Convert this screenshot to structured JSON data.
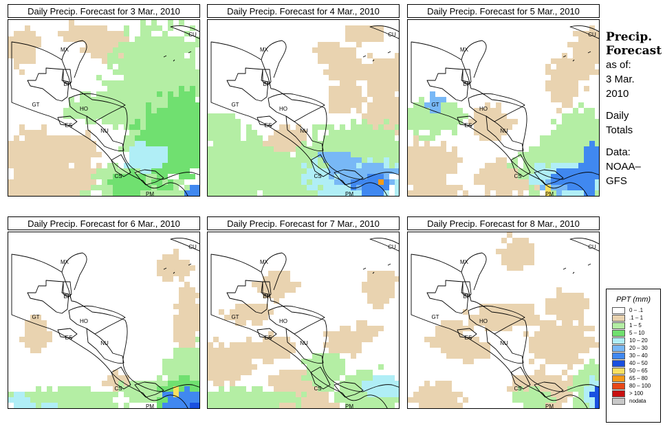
{
  "panels": [
    {
      "title": "Daily Precip. Forecast for  3 Mar., 2010",
      "scenario": "p1"
    },
    {
      "title": "Daily Precip. Forecast for  4 Mar., 2010",
      "scenario": "p2"
    },
    {
      "title": "Daily Precip. Forecast for  5 Mar., 2010",
      "scenario": "p3"
    },
    {
      "title": "Daily Precip. Forecast for  6 Mar., 2010",
      "scenario": "p4"
    },
    {
      "title": "Daily Precip. Forecast for  7 Mar., 2010",
      "scenario": "p5"
    },
    {
      "title": "Daily Precip. Forecast for  8 Mar., 2010",
      "scenario": "p6"
    }
  ],
  "country_labels": [
    "MX",
    "BH",
    "GT",
    "HO",
    "ES",
    "NU",
    "CS",
    "PM",
    "CU"
  ],
  "sidebar": {
    "heading_line1": "Precip.",
    "heading_line2": "Forecast",
    "asof_line1": "as of:",
    "asof_line2": "3 Mar.",
    "asof_line3": "2010",
    "type_line1": "Daily",
    "type_line2": "Totals",
    "data_line1": "Data:",
    "data_line2": "NOAA–",
    "data_line3": "GFS"
  },
  "legend": {
    "title": "PPT (mm)",
    "items": [
      {
        "label": "0 – .1",
        "color": "#ffffff"
      },
      {
        "label": ".1 – 1",
        "color": "#e9d3b0"
      },
      {
        "label": "1 – 5",
        "color": "#b4eea4"
      },
      {
        "label": "5 – 10",
        "color": "#70e070"
      },
      {
        "label": "10 – 20",
        "color": "#b0eef6"
      },
      {
        "label": "20 – 30",
        "color": "#78b8f6"
      },
      {
        "label": "30 – 40",
        "color": "#4088f0"
      },
      {
        "label": "40 – 50",
        "color": "#1a50e0"
      },
      {
        "label": "50 – 65",
        "color": "#f8e060"
      },
      {
        "label": "65 – 80",
        "color": "#f49a18"
      },
      {
        "label": "80 – 100",
        "color": "#e84818"
      },
      {
        "label": "> 100",
        "color": "#c81010"
      },
      {
        "label": "nodata",
        "color": "#c8c8c8"
      }
    ]
  }
}
